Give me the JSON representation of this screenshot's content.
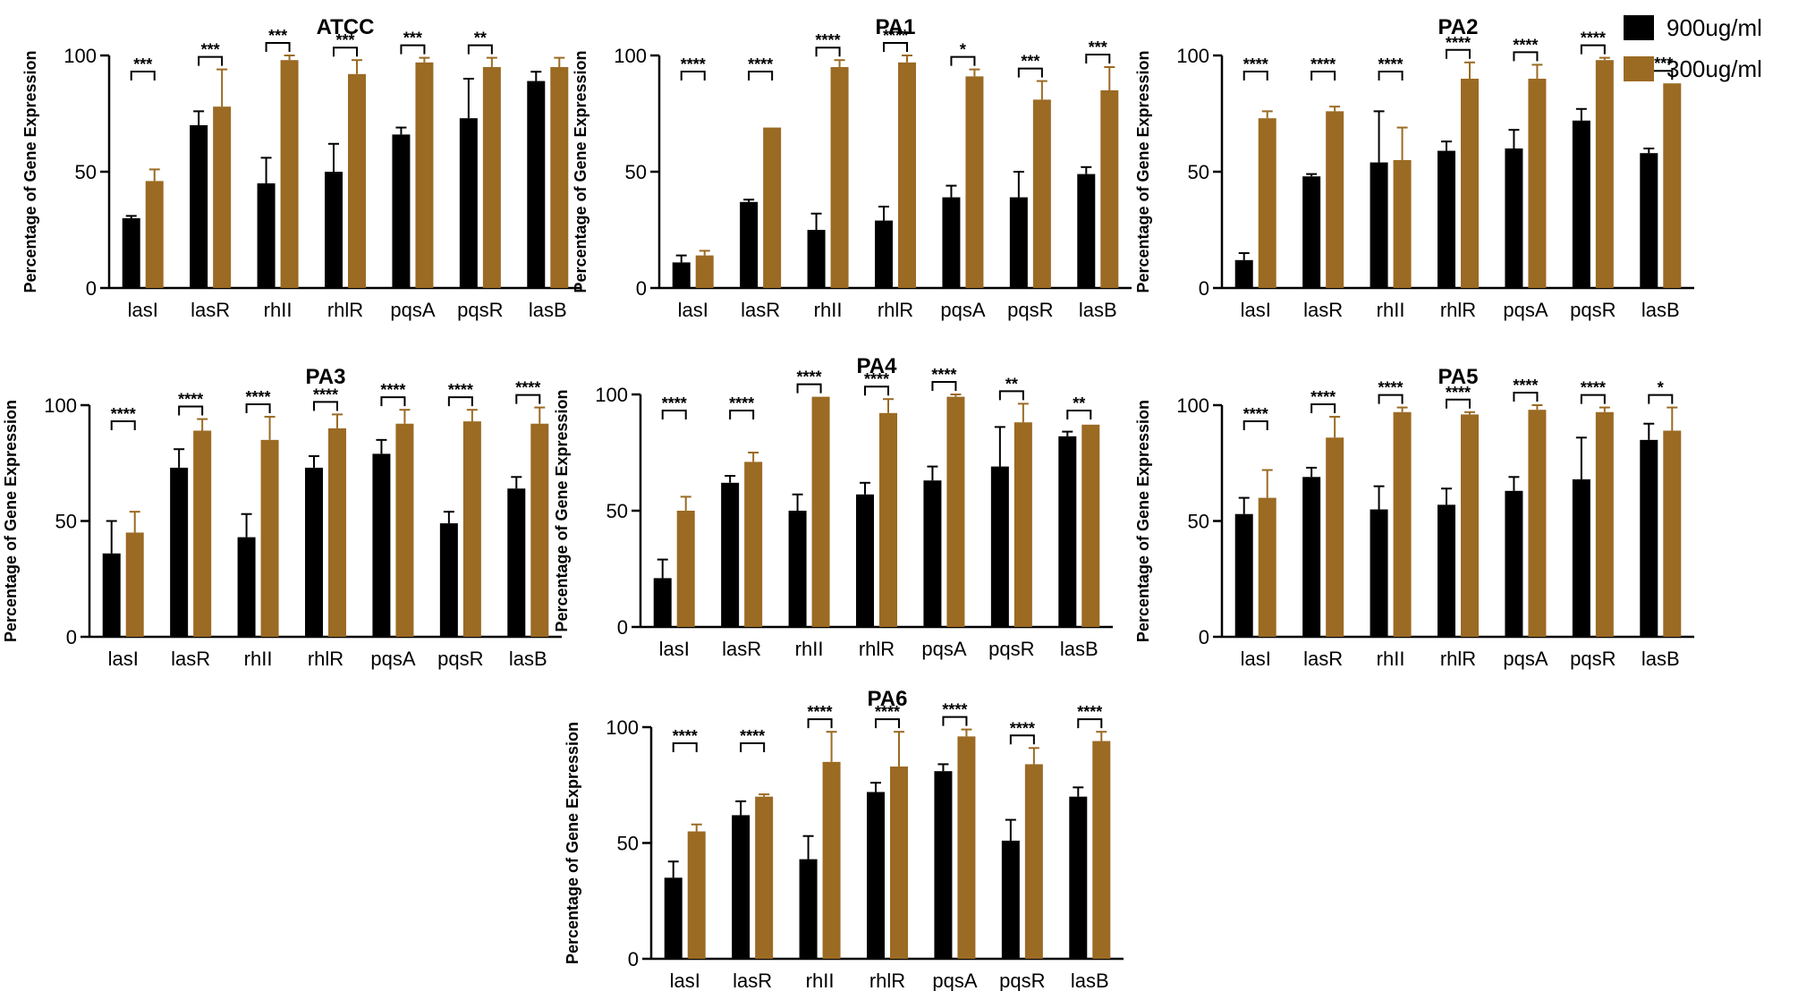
{
  "legend": {
    "items": [
      {
        "label": "900ug/ml",
        "color": "#000000"
      },
      {
        "label": "300ug/ml",
        "color": "#9b6a23"
      }
    ]
  },
  "chart_data": [
    {
      "type": "bar",
      "title": "ATCC",
      "ylabel": "Percentage of Gene Expression",
      "xlabel": "",
      "ylim": [
        0,
        100
      ],
      "yticks": [
        0,
        50,
        100
      ],
      "categories": [
        "lasI",
        "lasR",
        "rhII",
        "rhlR",
        "pqsA",
        "pqsR",
        "lasB"
      ],
      "series": [
        {
          "name": "900ug/ml",
          "values": [
            30,
            70,
            45,
            50,
            66,
            73,
            89
          ],
          "errors": [
            1,
            6,
            11,
            12,
            3,
            17,
            4
          ]
        },
        {
          "name": "300ug/ml",
          "values": [
            46,
            78,
            98,
            92,
            97,
            95,
            95
          ],
          "errors": [
            5,
            16,
            2,
            6,
            2,
            4,
            4
          ]
        }
      ],
      "significance": [
        "***",
        "***",
        "***",
        "***",
        "***",
        "**",
        ""
      ]
    },
    {
      "type": "bar",
      "title": "PA1",
      "ylabel": "Percentage of Gene Expression",
      "xlabel": "",
      "ylim": [
        0,
        100
      ],
      "yticks": [
        0,
        50,
        100
      ],
      "categories": [
        "lasI",
        "lasR",
        "rhII",
        "rhlR",
        "pqsA",
        "pqsR",
        "lasB"
      ],
      "series": [
        {
          "name": "900ug/ml",
          "values": [
            11,
            37,
            25,
            29,
            39,
            39,
            49
          ],
          "errors": [
            3,
            1,
            7,
            6,
            5,
            11,
            3
          ]
        },
        {
          "name": "300ug/ml",
          "values": [
            14,
            69,
            95,
            97,
            91,
            81,
            85
          ],
          "errors": [
            2,
            0,
            3,
            3,
            3,
            8,
            10
          ]
        }
      ],
      "significance": [
        "****",
        "****",
        "****",
        "****",
        "*",
        "***",
        "***"
      ]
    },
    {
      "type": "bar",
      "title": "PA2",
      "ylabel": "Percentage of Gene Expression",
      "xlabel": "",
      "ylim": [
        0,
        100
      ],
      "yticks": [
        0,
        50,
        100
      ],
      "categories": [
        "lasI",
        "lasR",
        "rhII",
        "rhlR",
        "pqsA",
        "pqsR",
        "lasB"
      ],
      "series": [
        {
          "name": "900ug/ml",
          "values": [
            12,
            48,
            54,
            59,
            60,
            72,
            58
          ],
          "errors": [
            3,
            1,
            22,
            4,
            8,
            5,
            2
          ]
        },
        {
          "name": "300ug/ml",
          "values": [
            73,
            76,
            55,
            90,
            90,
            98,
            88
          ],
          "errors": [
            3,
            2,
            14,
            7,
            6,
            1,
            0
          ]
        }
      ],
      "significance": [
        "****",
        "****",
        "****",
        "****",
        "****",
        "****",
        "****"
      ]
    },
    {
      "type": "bar",
      "title": "PA3",
      "ylabel": "Percentage of Gene Expression",
      "xlabel": "",
      "ylim": [
        0,
        100
      ],
      "yticks": [
        0,
        50,
        100
      ],
      "categories": [
        "lasI",
        "lasR",
        "rhII",
        "rhlR",
        "pqsA",
        "pqsR",
        "lasB"
      ],
      "series": [
        {
          "name": "900ug/ml",
          "values": [
            36,
            73,
            43,
            73,
            79,
            49,
            64
          ],
          "errors": [
            14,
            8,
            10,
            5,
            6,
            5,
            5
          ]
        },
        {
          "name": "300ug/ml",
          "values": [
            45,
            89,
            85,
            90,
            92,
            93,
            92
          ],
          "errors": [
            9,
            5,
            10,
            6,
            6,
            5,
            7
          ]
        }
      ],
      "significance": [
        "****",
        "****",
        "****",
        "****",
        "****",
        "****",
        "****"
      ]
    },
    {
      "type": "bar",
      "title": "PA4",
      "ylabel": "Percentage of Gene Expression",
      "xlabel": "",
      "ylim": [
        0,
        100
      ],
      "yticks": [
        0,
        50,
        100
      ],
      "categories": [
        "lasI",
        "lasR",
        "rhII",
        "rhlR",
        "pqsA",
        "pqsR",
        "lasB"
      ],
      "series": [
        {
          "name": "900ug/ml",
          "values": [
            21,
            62,
            50,
            57,
            63,
            69,
            82
          ],
          "errors": [
            8,
            3,
            7,
            5,
            6,
            17,
            2
          ]
        },
        {
          "name": "300ug/ml",
          "values": [
            50,
            71,
            99,
            92,
            99,
            88,
            87
          ],
          "errors": [
            6,
            4,
            0,
            6,
            1,
            8,
            0
          ]
        }
      ],
      "significance": [
        "****",
        "****",
        "****",
        "****",
        "****",
        "**",
        "**"
      ]
    },
    {
      "type": "bar",
      "title": "PA5",
      "ylabel": "Percentage of Gene Expression",
      "xlabel": "",
      "ylim": [
        0,
        100
      ],
      "yticks": [
        0,
        50,
        100
      ],
      "categories": [
        "lasI",
        "lasR",
        "rhII",
        "rhlR",
        "pqsA",
        "pqsR",
        "lasB"
      ],
      "series": [
        {
          "name": "900ug/ml",
          "values": [
            53,
            69,
            55,
            57,
            63,
            68,
            85
          ],
          "errors": [
            7,
            4,
            10,
            7,
            6,
            18,
            7
          ]
        },
        {
          "name": "300ug/ml",
          "values": [
            60,
            86,
            97,
            96,
            98,
            97,
            89
          ],
          "errors": [
            12,
            9,
            2,
            1,
            2,
            2,
            10
          ]
        }
      ],
      "significance": [
        "****",
        "****",
        "****",
        "****",
        "****",
        "****",
        "*"
      ]
    },
    {
      "type": "bar",
      "title": "PA6",
      "ylabel": "Percentage of Gene Expression",
      "xlabel": "",
      "ylim": [
        0,
        100
      ],
      "yticks": [
        0,
        50,
        100
      ],
      "categories": [
        "lasI",
        "lasR",
        "rhII",
        "rhlR",
        "pqsA",
        "pqsR",
        "lasB"
      ],
      "series": [
        {
          "name": "900ug/ml",
          "values": [
            35,
            62,
            43,
            72,
            81,
            51,
            70
          ],
          "errors": [
            7,
            6,
            10,
            4,
            3,
            9,
            4
          ]
        },
        {
          "name": "300ug/ml",
          "values": [
            55,
            70,
            85,
            83,
            96,
            84,
            94
          ],
          "errors": [
            3,
            1,
            13,
            15,
            3,
            7,
            4
          ]
        }
      ],
      "significance": [
        "****",
        "****",
        "****",
        "****",
        "****",
        "****",
        "****"
      ]
    }
  ]
}
